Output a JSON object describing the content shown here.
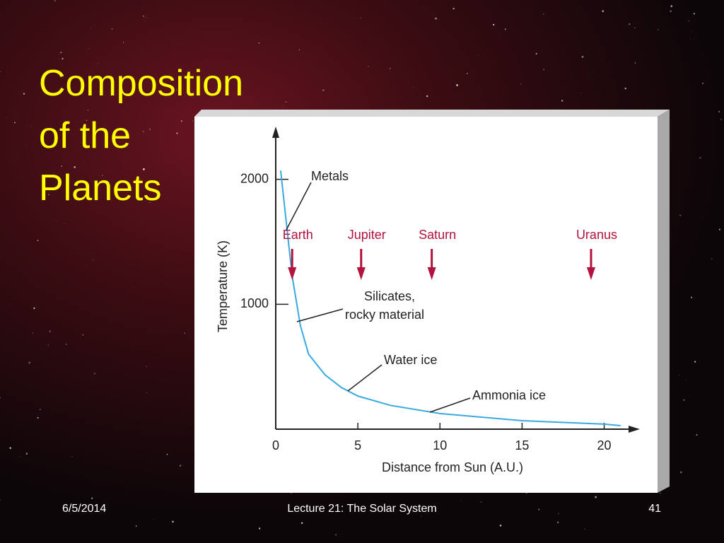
{
  "slide": {
    "title": [
      "Composition",
      "of the",
      "Planets"
    ],
    "footer": {
      "date": "6/5/2014",
      "center": "Lecture 21:  The Solar System",
      "page": "41"
    }
  },
  "chart_data": {
    "type": "line",
    "x_label": "Distance from Sun (A.U.)",
    "y_label": "Temperature (K)",
    "x": [
      0.3,
      1,
      1.5,
      2,
      3,
      4,
      5,
      7,
      10,
      15,
      20,
      21
    ],
    "series": [
      {
        "color": "#3aa9e0",
        "values": [
          2070,
          1225,
          830,
          600,
          435,
          333,
          265,
          190,
          125,
          68,
          40,
          28
        ]
      }
    ],
    "xlim": [
      0,
      22
    ],
    "ylim": [
      0,
      2400
    ],
    "xticks": [
      0,
      5,
      10,
      15,
      20
    ],
    "yticks": [
      1000,
      2000
    ],
    "markers": [
      {
        "label": "Earth",
        "x": 1
      },
      {
        "label": "Jupiter",
        "x": 5.2
      },
      {
        "label": "Saturn",
        "x": 9.5
      },
      {
        "label": "Uranus",
        "x": 19.2
      }
    ],
    "marker_color": "#b3123c",
    "annotations": [
      [
        "Metals"
      ],
      [
        "Silicates,",
        "rocky material"
      ],
      [
        "Water ice"
      ],
      [
        "Ammonia ice"
      ]
    ]
  }
}
